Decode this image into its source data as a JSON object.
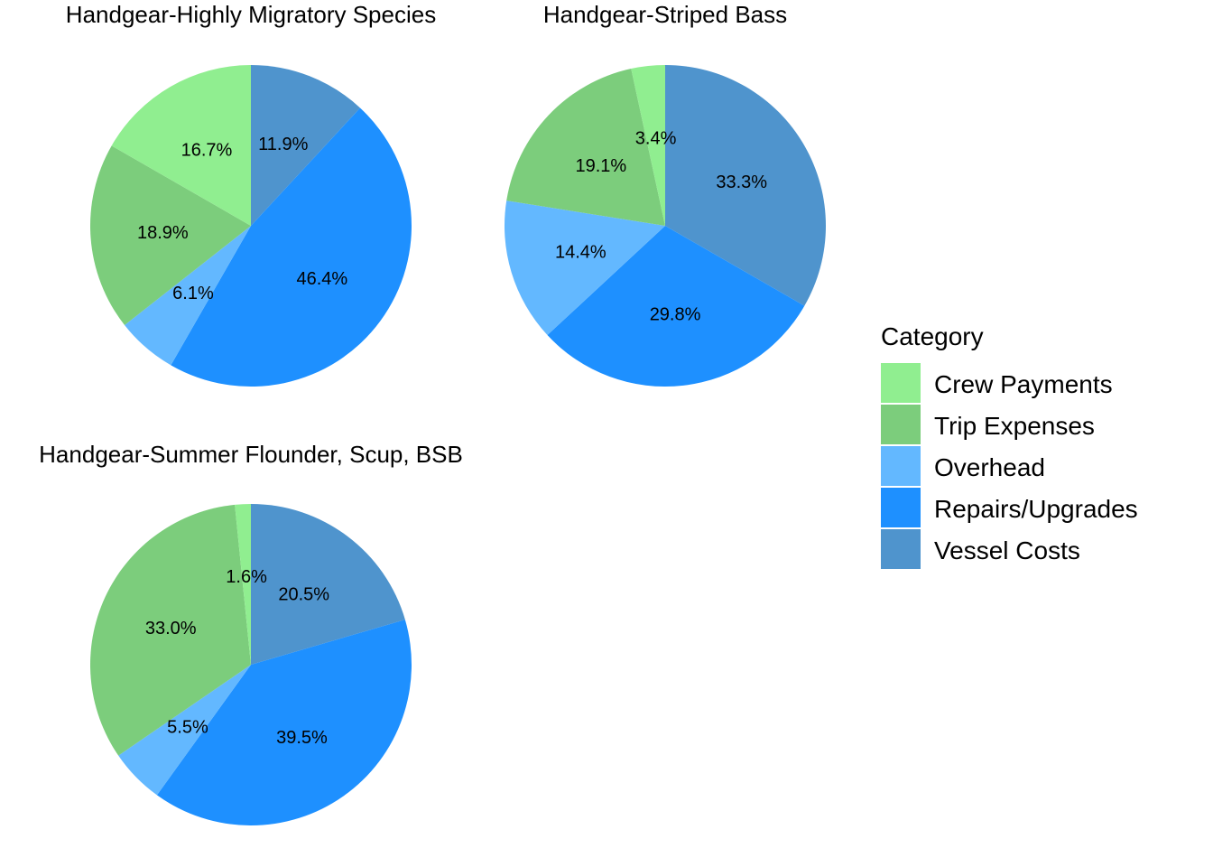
{
  "chart_data": {
    "type": "pie",
    "categories": [
      "Crew Payments",
      "Trip Expenses",
      "Overhead",
      "Repairs/Upgrades",
      "Vessel Costs"
    ],
    "colors": {
      "Crew Payments": "#90EE90",
      "Trip Expenses": "#7CCD7C",
      "Overhead": "#63B8FF",
      "Repairs/Upgrades": "#1E90FF",
      "Vessel Costs": "#4F94CD"
    },
    "legend": {
      "title": "Category",
      "position": "right"
    },
    "panels": [
      {
        "title": "Handgear-Highly Migratory Species",
        "slices": [
          {
            "category": "Vessel Costs",
            "value": 11.9,
            "label": "11.9%"
          },
          {
            "category": "Repairs/Upgrades",
            "value": 46.4,
            "label": "46.4%"
          },
          {
            "category": "Overhead",
            "value": 6.1,
            "label": "6.1%"
          },
          {
            "category": "Trip Expenses",
            "value": 18.9,
            "label": "18.9%"
          },
          {
            "category": "Crew Payments",
            "value": 16.7,
            "label": "16.7%"
          }
        ]
      },
      {
        "title": "Handgear-Striped Bass",
        "slices": [
          {
            "category": "Vessel Costs",
            "value": 33.3,
            "label": "33.3%"
          },
          {
            "category": "Repairs/Upgrades",
            "value": 29.8,
            "label": "29.8%"
          },
          {
            "category": "Overhead",
            "value": 14.4,
            "label": "14.4%"
          },
          {
            "category": "Trip Expenses",
            "value": 19.1,
            "label": "19.1%"
          },
          {
            "category": "Crew Payments",
            "value": 3.4,
            "label": "3.4%"
          }
        ]
      },
      {
        "title": "Handgear-Summer Flounder, Scup, BSB",
        "slices": [
          {
            "category": "Vessel Costs",
            "value": 20.5,
            "label": "20.5%"
          },
          {
            "category": "Repairs/Upgrades",
            "value": 39.5,
            "label": "39.5%"
          },
          {
            "category": "Overhead",
            "value": 5.5,
            "label": "5.5%"
          },
          {
            "category": "Trip Expenses",
            "value": 33.0,
            "label": "33.0%"
          },
          {
            "category": "Crew Payments",
            "value": 1.6,
            "label": "1.6%"
          }
        ]
      }
    ]
  }
}
